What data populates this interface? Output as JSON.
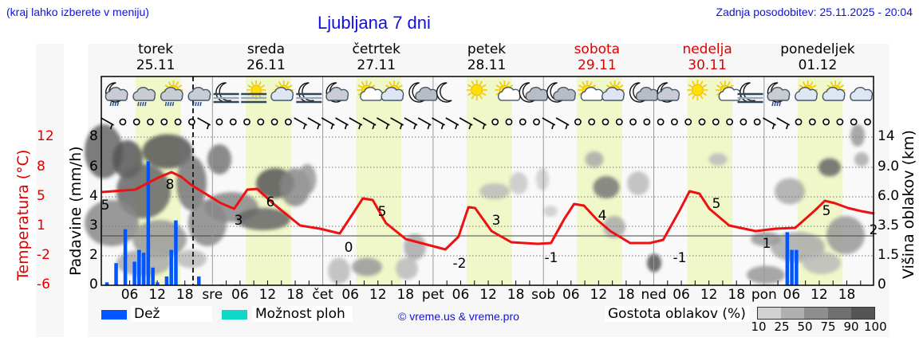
{
  "header": {
    "region_hint": "(kraj lahko izberete v meniju)",
    "title": "Ljubljana 7 dni",
    "last_update": "Zadnja posodobitev: 25.11.2025 - 20:04"
  },
  "days": [
    {
      "name": "torek",
      "date": "25.11",
      "weekend": false
    },
    {
      "name": "sreda",
      "date": "26.11",
      "weekend": false
    },
    {
      "name": "četrtek",
      "date": "27.11",
      "weekend": false
    },
    {
      "name": "petek",
      "date": "28.11",
      "weekend": false
    },
    {
      "name": "sobota",
      "date": "29.11",
      "weekend": true
    },
    {
      "name": "nedelja",
      "date": "30.11",
      "weekend": true
    },
    {
      "name": "ponedeljek",
      "date": "01.12",
      "weekend": false
    }
  ],
  "axes": {
    "left_temp_label": "Temperatura (°C)",
    "left_temp_ticks": [
      "12",
      "8",
      "5",
      "1",
      "-2",
      "-6"
    ],
    "left_precip_label": "Padavine (mm/h)",
    "left_precip_ticks": [
      "8",
      "6",
      "4",
      "3",
      "2",
      "0"
    ],
    "right_label": "Višina oblakov (km)",
    "right_ticks": [
      "14",
      "9.0",
      "6.0",
      "3.5",
      "1.5",
      "0"
    ],
    "x_ticks": [
      "06",
      "12",
      "18",
      "sre",
      "06",
      "12",
      "18",
      "čet",
      "06",
      "12",
      "18",
      "pet",
      "06",
      "12",
      "18",
      "sob",
      "06",
      "12",
      "18",
      "ned",
      "06",
      "12",
      "18",
      "pon",
      "06",
      "12",
      "18"
    ]
  },
  "legend": {
    "rain_label": "Dež",
    "rain_color": "#0055ff",
    "showers_label": "Možnost ploh",
    "showers_color": "#10d8c8",
    "credit": "© vreme.us & vreme.pro",
    "cloud_density_label": "Gostota oblakov (%)",
    "cloud_density_ticks": [
      "10",
      "25",
      "50",
      "75",
      "90",
      "100"
    ],
    "cloud_density_colors": [
      "#d2d2d2",
      "#b0b0b0",
      "#8e8e8e",
      "#707070",
      "#555555"
    ]
  },
  "colors": {
    "temperature_line": "#ee1111",
    "daylight_band": "#f0f7c8",
    "title_blue": "#1010e0",
    "weekend_red": "#e00000"
  },
  "icons": [
    "moon-cloud-rain-icon",
    "cloud-rain-icon",
    "sun-cloud-rain-icon",
    "cloud-rain-icon",
    "moon-fog-icon",
    "sun-fog-icon",
    "sun-cloud-icon",
    "moon-fog-icon",
    "moon-cloud-icon",
    "sun-small-cloud-icon",
    "sun-cloud-icon",
    "moon-small-cloud-icon",
    "moon-icon",
    "sun-icon",
    "sun-small-cloud-icon",
    "moon-small-cloud-icon",
    "moon-small-cloud-icon",
    "sun-small-cloud-icon",
    "sun-cloud-icon",
    "moon-small-cloud-icon",
    "moon-cloud-icon",
    "sun-icon",
    "sun-small-cloud-icon",
    "moon-fog-icon",
    "moon-cloud-rain-icon",
    "sun-cloud-icon",
    "sun-cloud-icon",
    "cloud-icon"
  ],
  "chart_data": {
    "type": "line",
    "title": "Ljubljana 7 dni",
    "xlabel": "",
    "ylabel": "Temperatura (°C) / Padavine (mm/h)",
    "y2label": "Višina oblakov (km)",
    "x_range": [
      "25.11 00h",
      "01.12 24h"
    ],
    "now_marker": "25.11 ~20h",
    "grid": true,
    "legend_position": "bottom",
    "series": [
      {
        "name": "Temperatura (°C)",
        "type": "line",
        "color": "#ee1111",
        "x_hours": [
          0,
          12,
          22,
          36,
          40,
          60,
          72,
          84,
          96,
          108,
          120,
          132,
          144,
          156,
          164,
          168
        ],
        "values": [
          4.5,
          6.5,
          4,
          2.5,
          5.5,
          0.5,
          4.5,
          -1.5,
          2.5,
          -0.5,
          3.5,
          -0.5,
          4.5,
          1.5,
          2,
          1.5
        ],
        "labels": [
          {
            "day": "torek",
            "min": 5,
            "max": 8
          },
          {
            "day": "sreda",
            "min": 3,
            "max": 6
          },
          {
            "day": "četrtek",
            "min": 0,
            "max": 5
          },
          {
            "day": "petek",
            "min": -2,
            "max": 3
          },
          {
            "day": "sobota",
            "min": -1,
            "max": 4
          },
          {
            "day": "nedelja",
            "min": -1,
            "max": 5
          },
          {
            "day": "ponedeljek",
            "min": 1,
            "max": 5,
            "end": 2
          }
        ]
      },
      {
        "name": "Dež (mm/h)",
        "type": "bar",
        "color": "#0055ff",
        "x_hours": [
          1,
          3,
          5,
          7,
          8,
          9,
          10,
          11,
          12,
          14,
          15,
          16,
          18,
          20,
          21,
          26,
          29,
          149,
          150,
          151
        ],
        "values": [
          0.2,
          1.5,
          2.9,
          1.6,
          2.2,
          2.1,
          6.4,
          1.2,
          0.2,
          0.6,
          2.2,
          3.2,
          0.05,
          0.05,
          0.6,
          0.05,
          0.05,
          2.8,
          2.2,
          2.2
        ]
      }
    ],
    "cloud_density_scale": [
      10,
      25,
      50,
      75,
      90,
      100
    ]
  }
}
